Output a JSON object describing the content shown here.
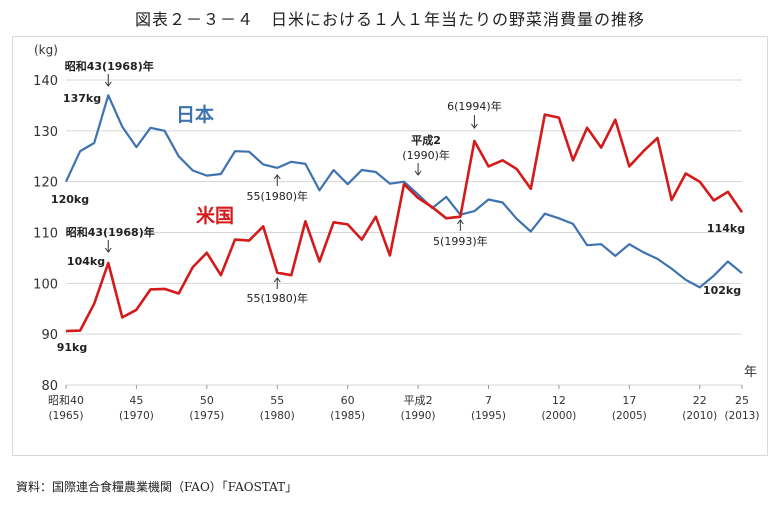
{
  "title": "図表２－３－４　日米における１人１年当たりの野菜消費量の推移",
  "source": "資料：国際連合食糧農業機関（FAO）「FAOSTAT」",
  "chart_data": {
    "type": "line",
    "ylabel": "(kg)",
    "xlabel": "年",
    "ylim": [
      80,
      140
    ],
    "yticks": [
      80,
      90,
      100,
      110,
      120,
      130,
      140
    ],
    "grid": true,
    "xlim": [
      1965,
      2013
    ],
    "x_ticks": [
      {
        "x": 1965,
        "era": "昭和40",
        "year": "(1965)"
      },
      {
        "x": 1970,
        "era": "45",
        "year": "(1970)"
      },
      {
        "x": 1975,
        "era": "50",
        "year": "(1975)"
      },
      {
        "x": 1980,
        "era": "55",
        "year": "(1980)"
      },
      {
        "x": 1985,
        "era": "60",
        "year": "(1985)"
      },
      {
        "x": 1990,
        "era": "平成2",
        "year": "(1990)"
      },
      {
        "x": 1995,
        "era": "7",
        "year": "(1995)"
      },
      {
        "x": 2000,
        "era": "12",
        "year": "(2000)"
      },
      {
        "x": 2005,
        "era": "17",
        "year": "(2005)"
      },
      {
        "x": 2010,
        "era": "22",
        "year": "(2010)"
      },
      {
        "x": 2013,
        "era": "25",
        "year": "(2013)"
      }
    ],
    "x": [
      1965,
      1966,
      1967,
      1968,
      1969,
      1970,
      1971,
      1972,
      1973,
      1974,
      1975,
      1976,
      1977,
      1978,
      1979,
      1980,
      1981,
      1982,
      1983,
      1984,
      1985,
      1986,
      1987,
      1988,
      1989,
      1990,
      1991,
      1992,
      1993,
      1994,
      1995,
      1996,
      1997,
      1998,
      1999,
      2000,
      2001,
      2002,
      2003,
      2004,
      2005,
      2006,
      2007,
      2008,
      2009,
      2010,
      2011,
      2012,
      2013
    ],
    "series": [
      {
        "name": "日本",
        "color": "#3e72b0",
        "values": [
          120,
          126,
          127.6,
          137,
          130.8,
          126.8,
          130.6,
          130,
          125,
          122.2,
          121.2,
          121.5,
          126,
          125.9,
          123.4,
          122.7,
          123.9,
          123.5,
          118.3,
          122.3,
          119.5,
          122.3,
          121.9,
          119.6,
          120,
          117.5,
          114.8,
          117,
          113.5,
          114.2,
          116.5,
          115.9,
          112.7,
          110.2,
          113.7,
          112.8,
          111.7,
          107.5,
          107.7,
          105.4,
          107.7,
          106.1,
          104.8,
          102.9,
          100.7,
          99.2,
          101.5,
          104.3,
          102
        ]
      },
      {
        "name": "米国",
        "color": "#d41a1a",
        "values": [
          90.6,
          90.7,
          96,
          104,
          93.3,
          94.8,
          98.8,
          98.9,
          98,
          103.2,
          106,
          101.6,
          108.6,
          108.4,
          111.2,
          102.1,
          101.6,
          112.2,
          104.3,
          112,
          111.6,
          108.6,
          113.1,
          105.5,
          119.5,
          116.8,
          115,
          112.8,
          113.1,
          128,
          123,
          124.2,
          122.5,
          118.6,
          133.2,
          132.6,
          124.2,
          130.6,
          126.7,
          132.2,
          123,
          126,
          128.6,
          116.4,
          121.6,
          120,
          116.3,
          118,
          114
        ]
      }
    ],
    "annotations": [
      {
        "text": "昭和43(1968)年",
        "series": "日本",
        "x": 1968,
        "value_label": "137kg"
      },
      {
        "text": "55(1980)年",
        "series": "日本",
        "x": 1980
      },
      {
        "text": "平成2",
        "text2": "(1990)年",
        "series": "both",
        "x": 1990
      },
      {
        "text": "6(1994)年",
        "series": "米国",
        "x": 1994
      },
      {
        "text": "5(1993)年",
        "series": "日本",
        "x": 1993
      },
      {
        "text": "昭和43(1968)年",
        "series": "米国",
        "x": 1968,
        "value_label": "104kg"
      },
      {
        "text": "55(1980)年",
        "series": "米国",
        "x": 1980
      }
    ],
    "value_labels": {
      "japan_start": "120kg",
      "japan_end": "102kg",
      "us_start": "91kg",
      "us_end": "114kg"
    }
  }
}
